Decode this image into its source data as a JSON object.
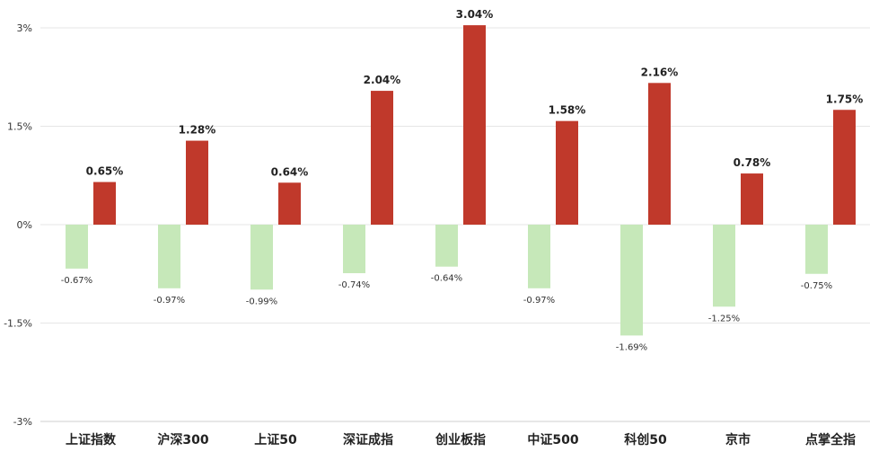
{
  "chart_data": {
    "type": "bar",
    "categories": [
      "上证指数",
      "沪深300",
      "上证50",
      "深证成指",
      "创业板指",
      "中证500",
      "科创50",
      "京市",
      "点掌全指"
    ],
    "series": [
      {
        "values": [
          -0.67,
          -0.97,
          -0.99,
          -0.74,
          -0.64,
          -0.97,
          -1.69,
          -1.25,
          -0.75
        ],
        "labels": [
          "-0.67%",
          "-0.97%",
          "-0.99%",
          "-0.74%",
          "-0.64%",
          "-0.97%",
          "-1.69%",
          "-1.25%",
          "-0.75%"
        ],
        "color": "#c6e8b9"
      },
      {
        "values": [
          0.65,
          1.28,
          0.64,
          2.04,
          3.04,
          1.58,
          2.16,
          0.78,
          1.75
        ],
        "labels": [
          "0.65%",
          "1.28%",
          "0.64%",
          "2.04%",
          "3.04%",
          "1.58%",
          "2.16%",
          "0.78%",
          "1.75%"
        ],
        "color": "#c0392b"
      }
    ],
    "ylim": [
      -3,
      3
    ],
    "yticks": [
      3,
      1.5,
      0,
      -1.5,
      -3
    ],
    "ytick_labels": [
      "3%",
      "1.5%",
      "0%",
      "-1.5%",
      "-3%"
    ],
    "grid": true,
    "grid_color": "#e6e6e6"
  }
}
